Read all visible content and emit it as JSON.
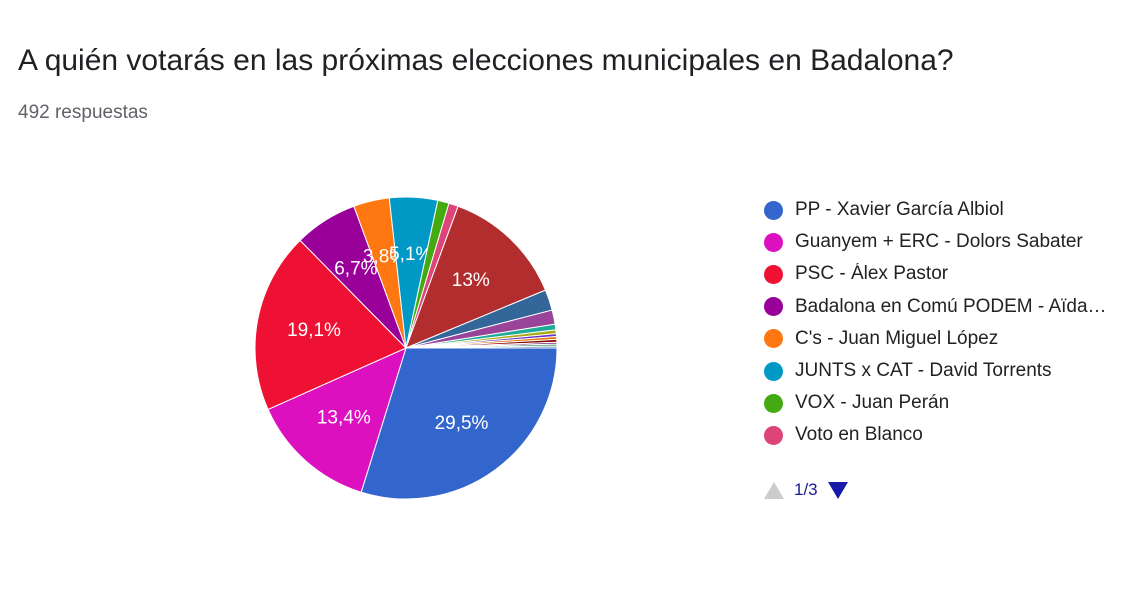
{
  "header": {
    "title": "A quién votarás en las próximas elecciones municipales en Badalona?",
    "responses": "492 respuestas"
  },
  "chart_data": {
    "type": "pie",
    "title": "A quién votarás en las próximas elecciones municipales en Badalona?",
    "subtitle": "492 respuestas",
    "slices": [
      {
        "name": "PP - Xavier García Albiol",
        "value": 29.5,
        "color": "#3366cc",
        "label": "29,5%"
      },
      {
        "name": "Guanyem + ERC - Dolors Sabater",
        "value": 13.4,
        "color": "#dd10c0",
        "label": "13,4%"
      },
      {
        "name": "PSC - Álex Pastor",
        "value": 19.1,
        "color": "#ee1133",
        "label": "19,1%"
      },
      {
        "name": "Badalona en Comú PODEM - Aïda…",
        "value": 6.7,
        "color": "#990099",
        "label": "6,7%"
      },
      {
        "name": "C's - Juan Miguel López",
        "value": 3.8,
        "color": "#ff7711",
        "label": "3,8%"
      },
      {
        "name": "JUNTS x CAT - David Torrents",
        "value": 5.1,
        "color": "#0099c6",
        "label": "5,1%"
      },
      {
        "name": "VOX - Juan Perán",
        "value": 1.2,
        "color": "#44aa11",
        "label": ""
      },
      {
        "name": "Voto en Blanco",
        "value": 1.0,
        "color": "#dd4477",
        "label": ""
      },
      {
        "name": "",
        "value": 13.0,
        "color": "#b22e2e",
        "label": "13%"
      },
      {
        "name": "",
        "value": 2.2,
        "color": "#336699",
        "label": ""
      },
      {
        "name": "",
        "value": 1.5,
        "color": "#994499",
        "label": ""
      },
      {
        "name": "",
        "value": 0.6,
        "color": "#22aa99",
        "label": ""
      },
      {
        "name": "",
        "value": 0.4,
        "color": "#aaaa11",
        "label": ""
      },
      {
        "name": "",
        "value": 0.3,
        "color": "#6633cc",
        "label": ""
      },
      {
        "name": "",
        "value": 0.3,
        "color": "#e67300",
        "label": ""
      },
      {
        "name": "",
        "value": 0.3,
        "color": "#8b0707",
        "label": ""
      },
      {
        "name": "",
        "value": 0.2,
        "color": "#651067",
        "label": ""
      },
      {
        "name": "",
        "value": 0.2,
        "color": "#329262",
        "label": ""
      },
      {
        "name": "",
        "value": 0.2,
        "color": "#5574a6",
        "label": ""
      }
    ],
    "legend_position": "right",
    "legend_page": "1/3"
  }
}
